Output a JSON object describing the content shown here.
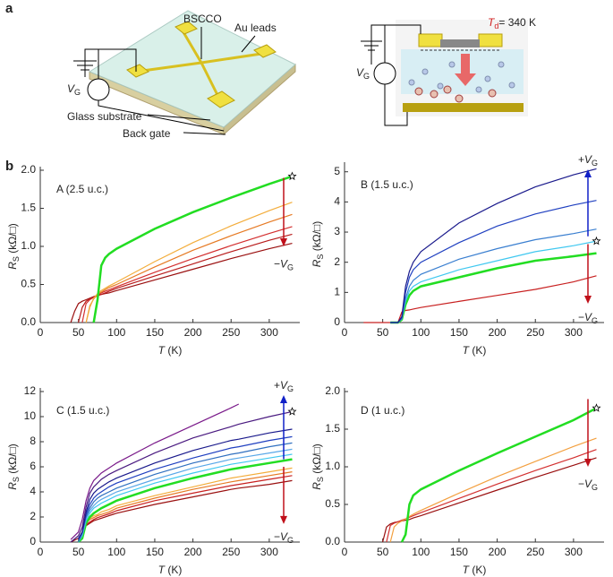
{
  "panel_labels": [
    "a",
    "b"
  ],
  "schematic": {
    "left_labels": [
      "BSCCO",
      "Au leads",
      "Glass substrate",
      "Back gate"
    ],
    "gate_left": {
      "main": "V",
      "sub": "G"
    },
    "gate_right": {
      "main": "V",
      "sub": "G"
    },
    "temperature": {
      "main": "T",
      "sub": "d",
      "unit": "= 340 K"
    }
  },
  "chart_data": [
    {
      "type": "line",
      "title": "A (2.5 u.c.)",
      "x_label": {
        "main": "T",
        "unit": " (K)"
      },
      "y_label": {
        "main": "R",
        "sub": "S",
        "unit": " (kΩ/□)"
      },
      "x": [
        40,
        45,
        50,
        55,
        60,
        65,
        70,
        75,
        80,
        85,
        90,
        100,
        150,
        200,
        250,
        300,
        330
      ],
      "xlim": [
        0,
        340
      ],
      "xticks": [
        0,
        50,
        100,
        150,
        200,
        250,
        300
      ],
      "ylim": [
        0,
        2
      ],
      "yticks": [
        {
          "value": 0,
          "label": "0.0"
        },
        {
          "value": 0.5,
          "label": "0.5"
        },
        {
          "value": 1,
          "label": "1.0"
        },
        {
          "value": 1.5,
          "label": "1.5"
        },
        {
          "value": 2,
          "label": "2.0"
        }
      ],
      "series": [
        {
          "color": "#9a1010",
          "values": [
            0,
            0.15,
            0.25,
            0.28,
            0.3,
            0.32,
            0.34,
            0.36,
            0.37,
            0.38,
            0.39,
            0.42,
            0.56,
            0.7,
            0.84,
            0.97,
            1.04
          ]
        },
        {
          "color": "#b81c1c",
          "values": [
            null,
            null,
            0,
            0.2,
            0.28,
            0.31,
            0.33,
            0.35,
            0.37,
            0.39,
            0.41,
            0.45,
            0.61,
            0.77,
            0.93,
            1.08,
            1.16
          ]
        },
        {
          "color": "#d33030",
          "values": [
            null,
            null,
            null,
            0,
            0.25,
            0.3,
            0.33,
            0.36,
            0.39,
            0.41,
            0.43,
            0.47,
            0.66,
            0.84,
            1.01,
            1.17,
            1.26
          ]
        },
        {
          "color": "#e67a24",
          "values": [
            null,
            null,
            null,
            null,
            0,
            0.22,
            0.31,
            0.37,
            0.4,
            0.43,
            0.46,
            0.5,
            0.73,
            0.95,
            1.14,
            1.32,
            1.42
          ]
        },
        {
          "color": "#f3ad3c",
          "values": [
            null,
            null,
            null,
            null,
            0,
            0.2,
            0.32,
            0.38,
            0.42,
            0.45,
            0.48,
            0.53,
            0.8,
            1.05,
            1.27,
            1.47,
            1.58
          ]
        },
        {
          "color": "#22dd22",
          "width": 2.5,
          "values": [
            null,
            null,
            null,
            null,
            null,
            null,
            0,
            0.3,
            0.75,
            0.85,
            0.9,
            0.97,
            1.23,
            1.45,
            1.64,
            1.82,
            1.92
          ]
        }
      ],
      "star_series": 5,
      "arrows": [
        {
          "direction": "down",
          "color": "#c0101a",
          "label": {
            "sign": "−",
            "main": "V",
            "sub": "G"
          }
        }
      ]
    },
    {
      "type": "line",
      "title": "B (1.5 u.c.)",
      "x_label": {
        "main": "T",
        "unit": " (K)"
      },
      "y_label": {
        "main": "R",
        "sub": "S",
        "unit": " (kΩ/□)"
      },
      "x": [
        25,
        60,
        70,
        75,
        80,
        85,
        90,
        100,
        150,
        200,
        250,
        300,
        330
      ],
      "xlim": [
        0,
        340
      ],
      "xticks": [
        0,
        50,
        100,
        150,
        200,
        250,
        300
      ],
      "ylim": [
        0,
        5.2
      ],
      "yticks": [
        0,
        1,
        2,
        3,
        4,
        5
      ],
      "series": [
        {
          "color": "#c82020",
          "values": [
            0,
            0,
            0,
            0.35,
            0.4,
            0.42,
            0.45,
            0.5,
            0.7,
            0.9,
            1.1,
            1.35,
            1.55
          ]
        },
        {
          "color": "#22dd22",
          "width": 2.5,
          "values": [
            null,
            0,
            0,
            0.1,
            0.6,
            0.9,
            1.05,
            1.2,
            1.5,
            1.8,
            2.05,
            2.2,
            2.3
          ]
        },
        {
          "color": "#40c8f0",
          "values": [
            null,
            0,
            0,
            0.12,
            0.7,
            1.05,
            1.2,
            1.35,
            1.75,
            2.05,
            2.35,
            2.55,
            2.7
          ]
        },
        {
          "color": "#3a7fd0",
          "values": [
            null,
            0,
            0,
            0.14,
            0.8,
            1.2,
            1.4,
            1.6,
            2.1,
            2.45,
            2.75,
            2.95,
            3.1
          ]
        },
        {
          "color": "#2040c0",
          "values": [
            null,
            0,
            0,
            0.15,
            1.0,
            1.5,
            1.75,
            2.0,
            2.65,
            3.2,
            3.6,
            3.9,
            4.05
          ]
        },
        {
          "color": "#1a1a8c",
          "values": [
            null,
            0,
            0,
            0.2,
            1.2,
            1.7,
            2.0,
            2.35,
            3.3,
            3.95,
            4.5,
            4.9,
            5.1
          ]
        }
      ],
      "star_series": 2,
      "arrows": [
        {
          "direction": "up",
          "color": "#1020c8",
          "label": {
            "sign": "+",
            "main": "V",
            "sub": "G"
          }
        },
        {
          "direction": "down",
          "color": "#c0101a",
          "label": {
            "sign": "−",
            "main": "V",
            "sub": "G"
          }
        }
      ]
    },
    {
      "type": "line",
      "title": "C (1.5 u.c.)",
      "x_label": {
        "main": "T",
        "unit": " (K)"
      },
      "y_label": {
        "main": "R",
        "sub": "S",
        "unit": " (kΩ/□)"
      },
      "x": [
        40,
        50,
        55,
        60,
        65,
        70,
        75,
        80,
        90,
        100,
        150,
        200,
        250,
        260,
        300,
        330
      ],
      "xlim": [
        0,
        340
      ],
      "xticks": [
        0,
        50,
        100,
        150,
        200,
        250,
        300
      ],
      "ylim": [
        0,
        12
      ],
      "yticks": [
        0,
        2,
        4,
        6,
        8,
        10,
        12
      ],
      "series": [
        {
          "color": "#9a1010",
          "values": [
            0,
            0.3,
            0.6,
            1.3,
            1.5,
            1.7,
            1.8,
            1.9,
            2.1,
            2.3,
            3.0,
            3.6,
            4.2,
            4.3,
            4.6,
            4.9
          ]
        },
        {
          "color": "#c82020",
          "values": [
            null,
            0,
            0.6,
            1.4,
            1.6,
            1.8,
            1.95,
            2.05,
            2.25,
            2.5,
            3.3,
            3.9,
            4.5,
            4.6,
            5.0,
            5.3
          ]
        },
        {
          "color": "#e67a24",
          "values": [
            null,
            0,
            0.7,
            1.5,
            1.8,
            1.95,
            2.1,
            2.2,
            2.4,
            2.7,
            3.5,
            4.2,
            4.8,
            4.9,
            5.3,
            5.6
          ]
        },
        {
          "color": "#f3ad3c",
          "values": [
            null,
            0.2,
            0.8,
            1.6,
            1.9,
            2.1,
            2.2,
            2.4,
            2.6,
            2.9,
            3.7,
            4.4,
            5.1,
            5.2,
            5.6,
            5.9
          ]
        },
        {
          "color": "#22dd22",
          "width": 2.5,
          "values": [
            null,
            0,
            0.3,
            1.5,
            2.0,
            2.3,
            2.5,
            2.7,
            3.0,
            3.3,
            4.3,
            5.1,
            5.8,
            5.9,
            6.3,
            6.6
          ]
        },
        {
          "color": "#40c8f0",
          "values": [
            null,
            0,
            0.5,
            1.7,
            2.3,
            2.7,
            2.9,
            3.1,
            3.4,
            3.7,
            4.7,
            5.5,
            6.2,
            6.3,
            6.7,
            7.0
          ]
        },
        {
          "color": "#5aa8e8",
          "values": [
            null,
            0,
            0.6,
            1.9,
            2.5,
            2.9,
            3.2,
            3.4,
            3.7,
            4.0,
            5.0,
            5.9,
            6.6,
            6.7,
            7.1,
            7.4
          ]
        },
        {
          "color": "#3070c0",
          "values": [
            null,
            0,
            0.7,
            2.0,
            2.7,
            3.2,
            3.5,
            3.7,
            4.0,
            4.3,
            5.4,
            6.3,
            7.0,
            7.1,
            7.6,
            7.9
          ]
        },
        {
          "color": "#2040c0",
          "values": [
            null,
            0.2,
            0.8,
            2.2,
            3.0,
            3.5,
            3.8,
            4.0,
            4.4,
            4.7,
            5.8,
            6.7,
            7.5,
            7.6,
            8.1,
            8.4
          ]
        },
        {
          "color": "#1a1a8c",
          "values": [
            null,
            0.3,
            0.8,
            2.4,
            3.4,
            3.9,
            4.2,
            4.4,
            4.8,
            5.1,
            6.3,
            7.3,
            8.1,
            8.2,
            8.7,
            9.0
          ]
        },
        {
          "color": "#4a1a80",
          "values": [
            0,
            0.5,
            1.2,
            2.8,
            3.9,
            4.4,
            4.7,
            5.0,
            5.4,
            5.7,
            7.1,
            8.3,
            9.2,
            9.4,
            10.0,
            10.4
          ]
        },
        {
          "color": "#7a1a8a",
          "values": [
            0.2,
            0.8,
            1.8,
            3.3,
            4.3,
            4.9,
            5.2,
            5.5,
            5.9,
            6.3,
            7.9,
            9.3,
            10.7,
            11,
            null,
            null
          ]
        }
      ],
      "star_series": 10,
      "arrows": [
        {
          "direction": "up",
          "color": "#1020c8",
          "label": {
            "sign": "+",
            "main": "V",
            "sub": "G"
          }
        },
        {
          "direction": "down",
          "color": "#c0101a",
          "label": {
            "sign": "−",
            "main": "V",
            "sub": "G"
          }
        }
      ]
    },
    {
      "type": "line",
      "title": "D (1 u.c.)",
      "x_label": {
        "main": "T",
        "unit": " (K)"
      },
      "y_label": {
        "main": "R",
        "sub": "S",
        "unit": " (kΩ/□)"
      },
      "x": [
        50,
        55,
        60,
        65,
        70,
        75,
        80,
        85,
        90,
        100,
        150,
        200,
        250,
        300,
        330
      ],
      "xlim": [
        0,
        340
      ],
      "xticks": [
        0,
        50,
        100,
        150,
        200,
        250,
        300
      ],
      "ylim": [
        0,
        2
      ],
      "yticks": [
        {
          "value": 0,
          "label": "0.0"
        },
        {
          "value": 0.5,
          "label": "0.5"
        },
        {
          "value": 1,
          "label": "1.0"
        },
        {
          "value": 1.5,
          "label": "1.5"
        },
        {
          "value": 2,
          "label": "2.0"
        }
      ],
      "series": [
        {
          "color": "#9a1010",
          "values": [
            0,
            0.2,
            0.24,
            0.26,
            0.27,
            0.28,
            0.29,
            0.3,
            0.32,
            0.35,
            0.52,
            0.69,
            0.86,
            1.02,
            1.12
          ]
        },
        {
          "color": "#d33030",
          "values": [
            null,
            0,
            0.22,
            0.25,
            0.27,
            0.29,
            0.31,
            0.33,
            0.35,
            0.39,
            0.58,
            0.77,
            0.95,
            1.12,
            1.23
          ]
        },
        {
          "color": "#f3a040",
          "values": [
            null,
            null,
            0,
            0.2,
            0.25,
            0.28,
            0.31,
            0.34,
            0.37,
            0.42,
            0.65,
            0.87,
            1.07,
            1.27,
            1.38
          ]
        },
        {
          "color": "#22dd22",
          "width": 2.5,
          "values": [
            null,
            null,
            null,
            null,
            null,
            0,
            0.1,
            0.5,
            0.62,
            0.7,
            0.95,
            1.18,
            1.4,
            1.62,
            1.78
          ]
        }
      ],
      "star_series": 3,
      "arrows": [
        {
          "direction": "down",
          "color": "#c0101a",
          "label": {
            "sign": "−",
            "main": "V",
            "sub": "G"
          }
        }
      ]
    }
  ]
}
